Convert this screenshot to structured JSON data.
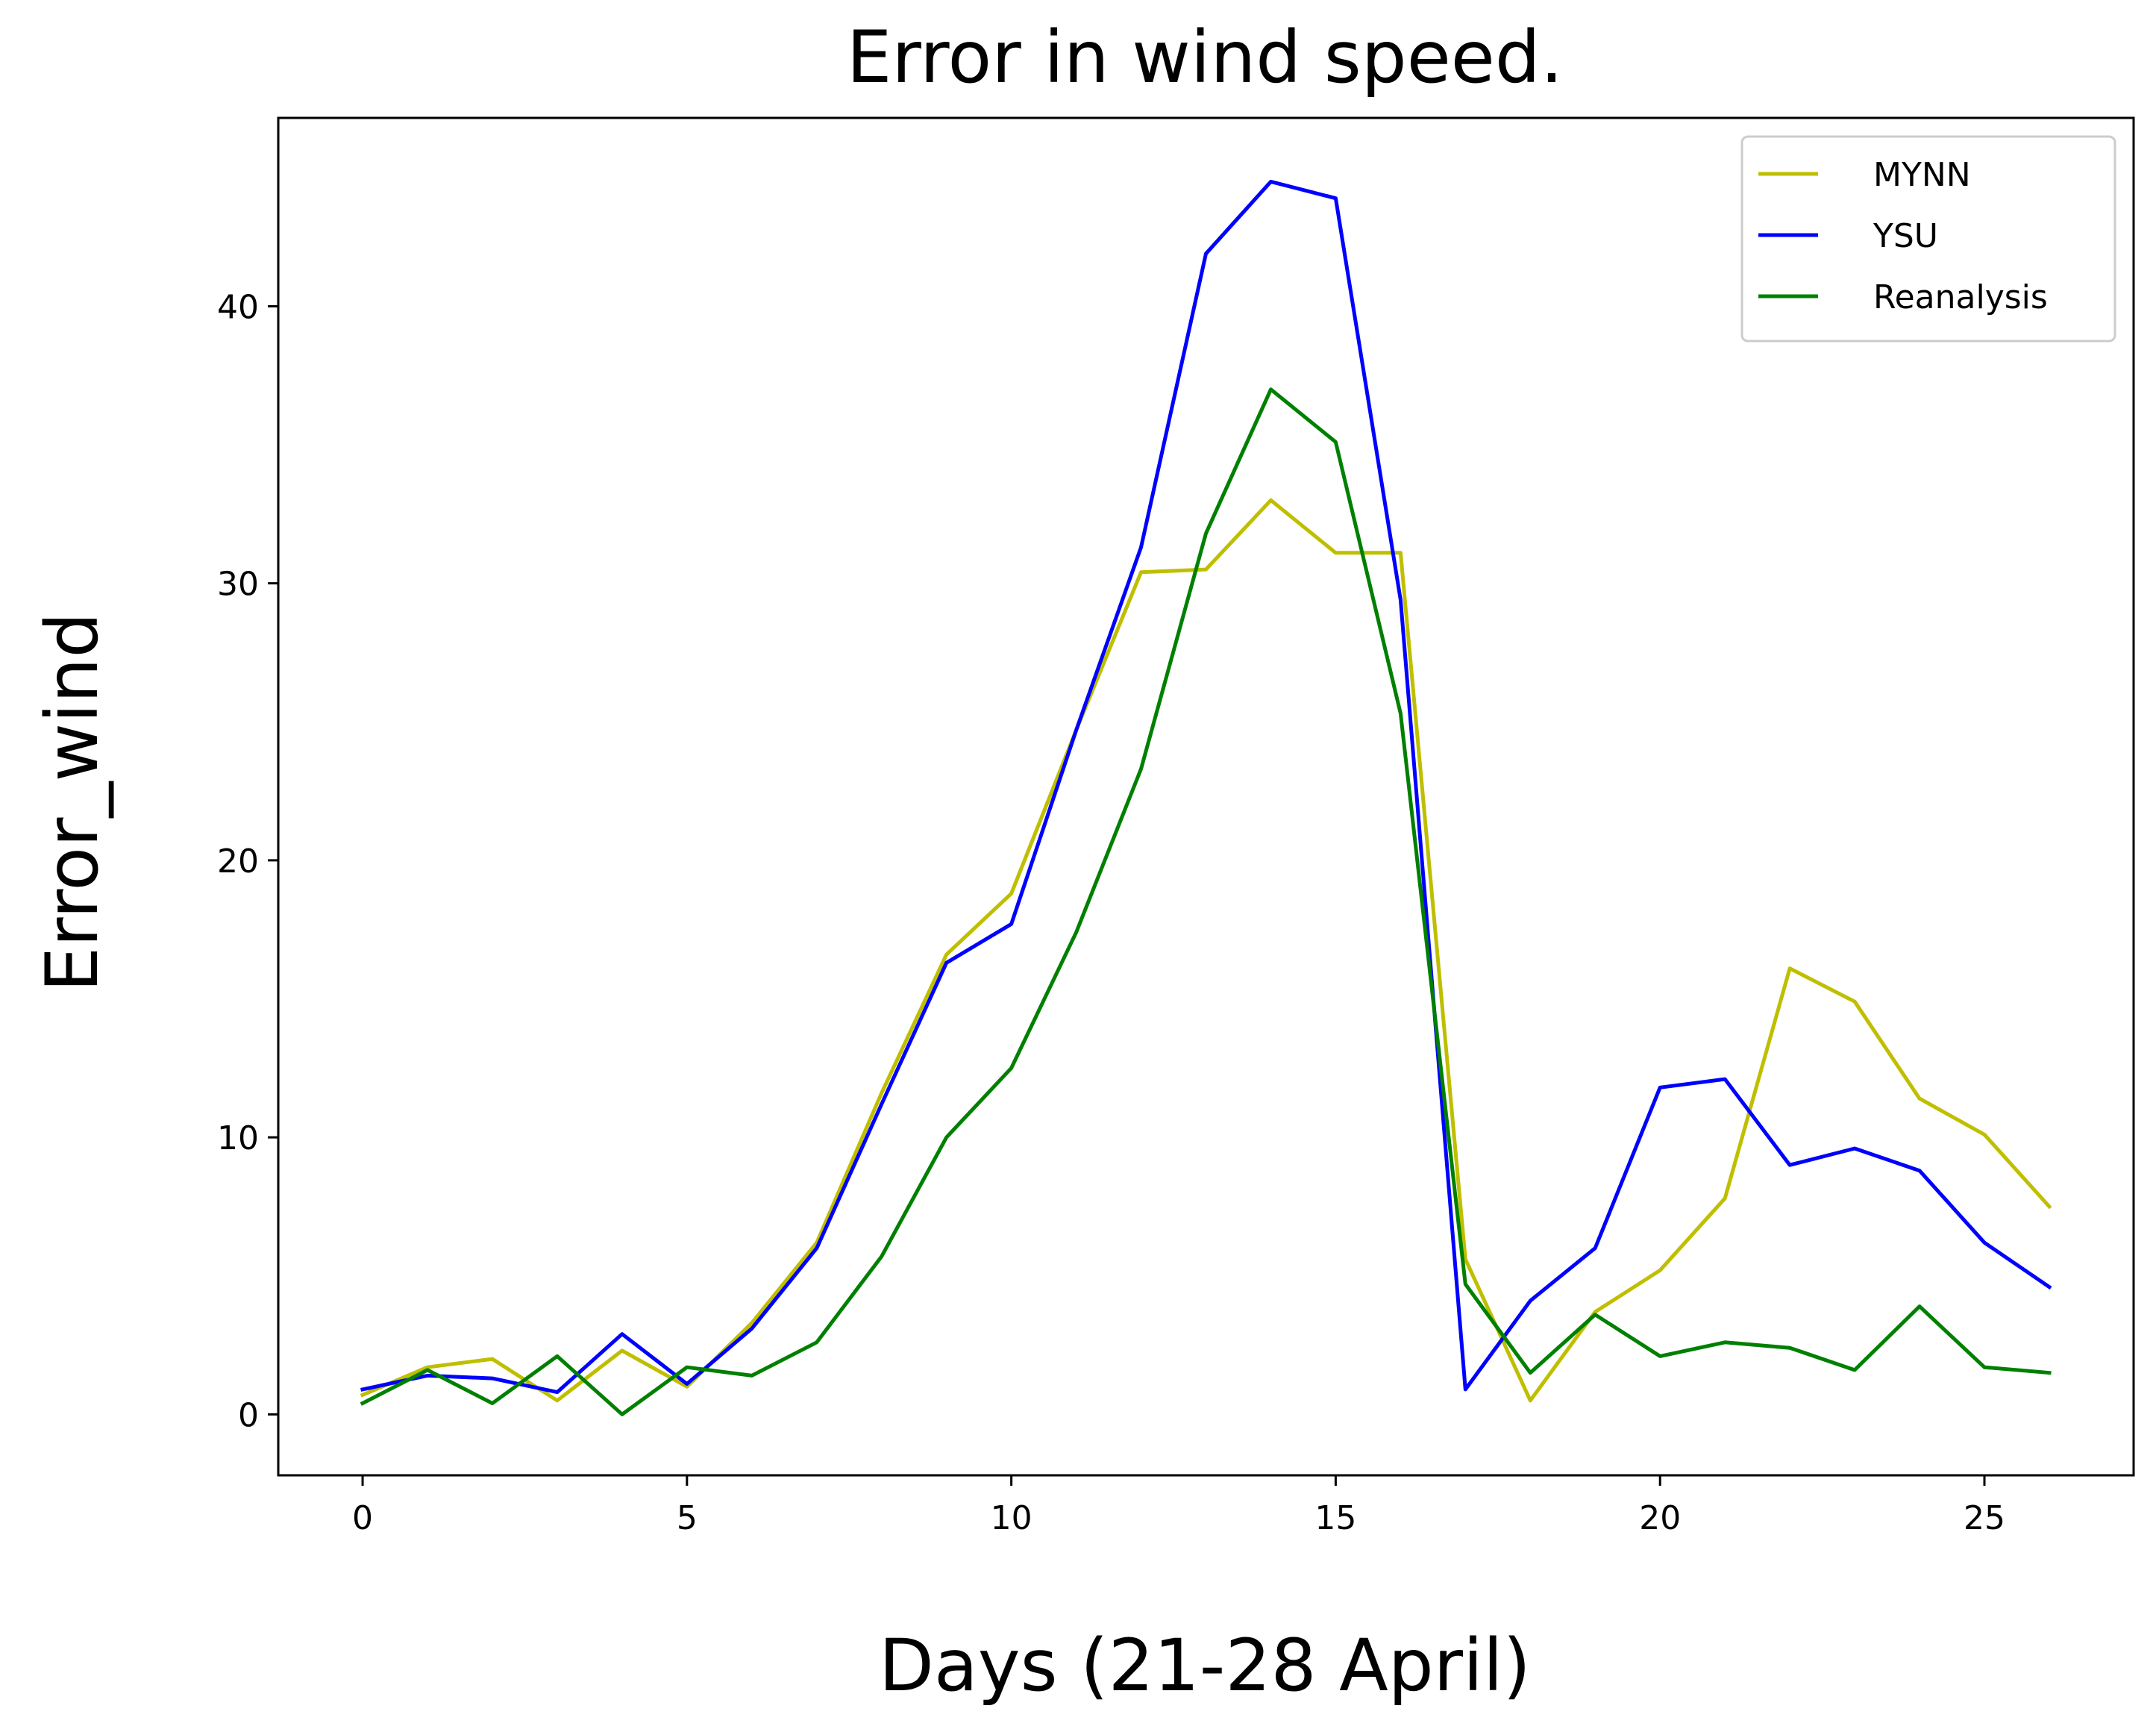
{
  "chart_data": {
    "type": "line",
    "title": "Error in wind speed.",
    "xlabel": "Days (21-28 April)",
    "ylabel": "Error_wind",
    "xlim": [
      -1.3,
      27.3
    ],
    "ylim": [
      -2.2,
      46.8
    ],
    "xticks": [
      0,
      5,
      10,
      15,
      20,
      25
    ],
    "yticks": [
      0,
      10,
      20,
      30,
      40
    ],
    "grid": false,
    "legend_position": "top-right",
    "x": [
      0,
      1,
      2,
      3,
      4,
      5,
      6,
      7,
      8,
      9,
      10,
      11,
      12,
      13,
      14,
      15,
      16,
      17,
      18,
      19,
      20,
      21,
      22,
      23,
      24,
      25,
      26
    ],
    "series": [
      {
        "name": "MYNN",
        "color": "#bfbf00",
        "values": [
          0.7,
          1.7,
          2.0,
          0.5,
          2.3,
          1.0,
          3.3,
          6.2,
          11.6,
          16.6,
          18.8,
          24.7,
          30.4,
          30.5,
          33.0,
          31.1,
          31.1,
          5.6,
          0.5,
          3.7,
          5.2,
          7.8,
          16.1,
          14.9,
          11.4,
          10.1,
          7.5
        ]
      },
      {
        "name": "YSU",
        "color": "#0000ff",
        "values": [
          0.9,
          1.4,
          1.3,
          0.8,
          2.9,
          1.1,
          3.1,
          6.0,
          11.2,
          16.3,
          17.7,
          24.7,
          31.3,
          41.9,
          44.5,
          43.9,
          29.4,
          0.9,
          4.1,
          6.0,
          11.8,
          12.1,
          9.0,
          9.6,
          8.8,
          6.2,
          4.6
        ]
      },
      {
        "name": "Reanalysis",
        "color": "#008000",
        "values": [
          0.4,
          1.6,
          0.4,
          2.1,
          0.0,
          1.7,
          1.4,
          2.6,
          5.7,
          10.0,
          12.5,
          17.4,
          23.3,
          31.8,
          37.0,
          35.1,
          25.3,
          4.7,
          1.5,
          3.6,
          2.1,
          2.6,
          2.4,
          1.6,
          3.9,
          1.7,
          1.5
        ]
      }
    ]
  }
}
